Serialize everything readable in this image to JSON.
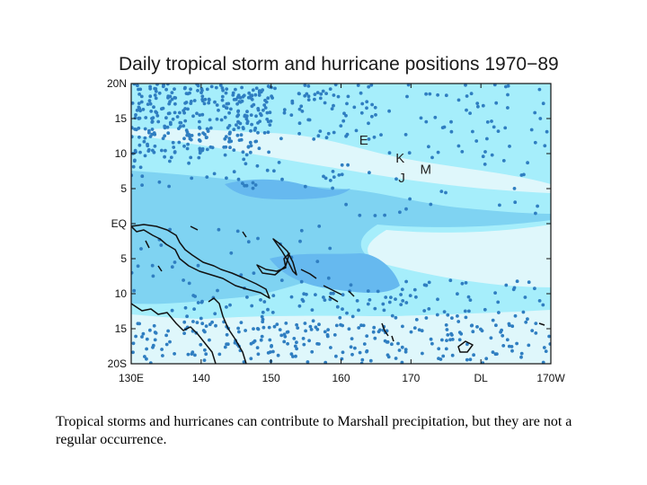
{
  "map": {
    "title": "Daily tropical storm and hurricane positions 1970−89",
    "lat_range": [
      -20,
      20
    ],
    "lon_range": [
      130,
      190
    ],
    "y_ticks": [
      {
        "lat": 20,
        "label": "20N"
      },
      {
        "lat": 15,
        "label": "15"
      },
      {
        "lat": 10,
        "label": "10"
      },
      {
        "lat": 5,
        "label": "5"
      },
      {
        "lat": 0,
        "label": "EQ"
      },
      {
        "lat": -5,
        "label": "5"
      },
      {
        "lat": -10,
        "label": "10"
      },
      {
        "lat": -15,
        "label": "15"
      },
      {
        "lat": -20,
        "label": "20S"
      }
    ],
    "x_ticks": [
      {
        "lon": 130,
        "label": "130E"
      },
      {
        "lon": 140,
        "label": "140"
      },
      {
        "lon": 150,
        "label": "150"
      },
      {
        "lon": 160,
        "label": "160"
      },
      {
        "lon": 170,
        "label": "170"
      },
      {
        "lon": 180,
        "label": "DL"
      },
      {
        "lon": 190,
        "label": "170W"
      }
    ],
    "station_labels": [
      {
        "text": "E",
        "lon": 162.6,
        "lat": 11.3
      },
      {
        "text": "K",
        "lon": 167.8,
        "lat": 8.7
      },
      {
        "text": "M",
        "lon": 171.3,
        "lat": 7.1
      },
      {
        "text": "J",
        "lon": 168.2,
        "lat": 5.9
      }
    ],
    "colors": {
      "light": "#dff7fb",
      "mid": "#a6eefb",
      "deep": "#7fd3f2",
      "deeper": "#66b9ef",
      "dot": "#2f7ec1",
      "coast": "#111111"
    }
  },
  "caption": "Tropical storms and hurricanes can contribute to Marshall precipitation, but they are not a regular occurrence."
}
